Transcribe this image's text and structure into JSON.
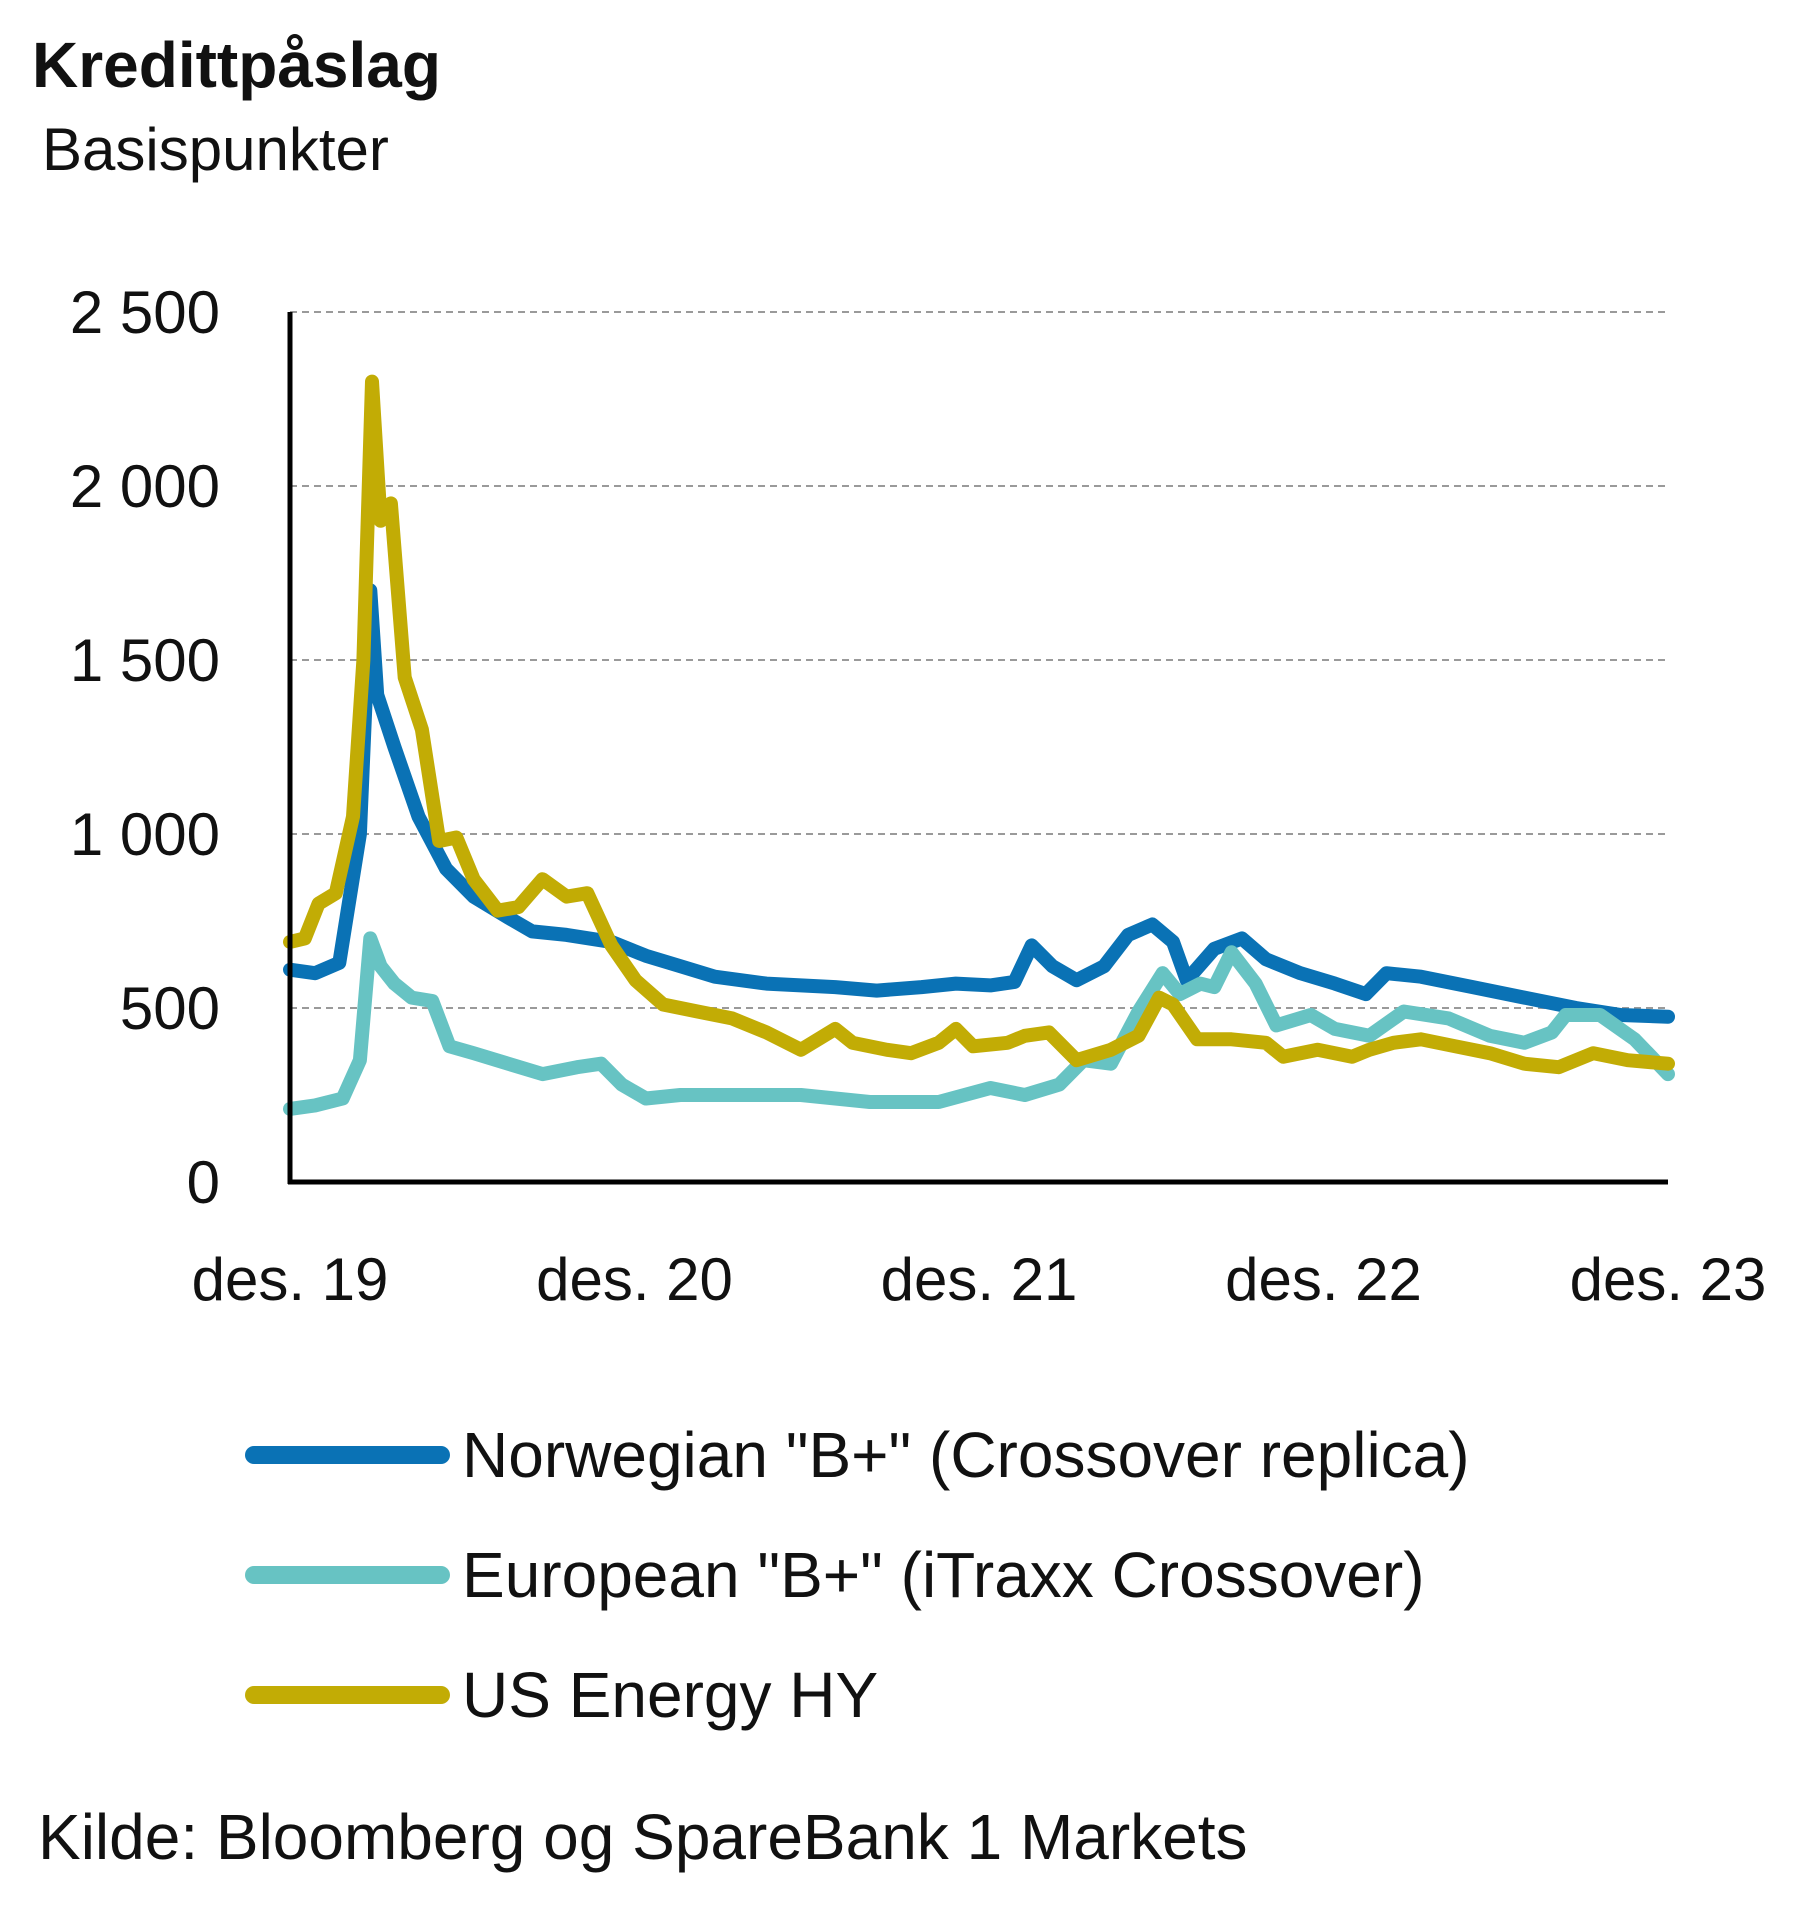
{
  "title": "Kredittpåslag",
  "subtitle": "Basispunkter",
  "source": "Kilde: Bloomberg og SpareBank 1 Markets",
  "chart_data": {
    "type": "line",
    "ylim": [
      0,
      2500
    ],
    "yticks": [
      0,
      500,
      1000,
      1500,
      2000,
      2500
    ],
    "ytick_labels": [
      "0",
      "500",
      "1 000",
      "1 500",
      "2 000",
      "2 500"
    ],
    "xlim": [
      2019.917,
      2023.917
    ],
    "xticks": [
      2019.917,
      2020.917,
      2021.917,
      2022.917,
      2023.917
    ],
    "xtick_labels": [
      "des. 19",
      "des. 20",
      "des. 21",
      "des. 22",
      "des. 23"
    ],
    "grid": true,
    "legend_position": "bottom",
    "series": [
      {
        "name": "Norwegian \"B+\" (Crossover replica)",
        "color": "#0a72b5",
        "points": [
          [
            2019.917,
            610
          ],
          [
            2019.99,
            600
          ],
          [
            2020.06,
            630
          ],
          [
            2020.12,
            1000
          ],
          [
            2020.15,
            1700
          ],
          [
            2020.17,
            1400
          ],
          [
            2020.22,
            1250
          ],
          [
            2020.29,
            1050
          ],
          [
            2020.37,
            900
          ],
          [
            2020.45,
            820
          ],
          [
            2020.55,
            760
          ],
          [
            2020.62,
            720
          ],
          [
            2020.72,
            710
          ],
          [
            2020.85,
            690
          ],
          [
            2020.95,
            650
          ],
          [
            2021.05,
            620
          ],
          [
            2021.15,
            590
          ],
          [
            2021.3,
            570
          ],
          [
            2021.5,
            560
          ],
          [
            2021.62,
            550
          ],
          [
            2021.75,
            560
          ],
          [
            2021.85,
            570
          ],
          [
            2021.95,
            565
          ],
          [
            2022.02,
            575
          ],
          [
            2022.07,
            680
          ],
          [
            2022.13,
            620
          ],
          [
            2022.2,
            580
          ],
          [
            2022.28,
            620
          ],
          [
            2022.35,
            710
          ],
          [
            2022.42,
            740
          ],
          [
            2022.48,
            690
          ],
          [
            2022.52,
            580
          ],
          [
            2022.6,
            670
          ],
          [
            2022.68,
            700
          ],
          [
            2022.75,
            640
          ],
          [
            2022.85,
            600
          ],
          [
            2022.95,
            570
          ],
          [
            2023.04,
            540
          ],
          [
            2023.1,
            600
          ],
          [
            2023.2,
            590
          ],
          [
            2023.35,
            560
          ],
          [
            2023.5,
            530
          ],
          [
            2023.65,
            500
          ],
          [
            2023.78,
            480
          ],
          [
            2023.917,
            475
          ]
        ]
      },
      {
        "name": "European \"B+\" (iTraxx Crossover)",
        "color": "#67c3c3",
        "points": [
          [
            2019.917,
            210
          ],
          [
            2019.99,
            220
          ],
          [
            2020.07,
            240
          ],
          [
            2020.12,
            350
          ],
          [
            2020.15,
            700
          ],
          [
            2020.18,
            620
          ],
          [
            2020.22,
            570
          ],
          [
            2020.27,
            530
          ],
          [
            2020.33,
            520
          ],
          [
            2020.38,
            390
          ],
          [
            2020.45,
            370
          ],
          [
            2020.55,
            340
          ],
          [
            2020.65,
            310
          ],
          [
            2020.75,
            330
          ],
          [
            2020.82,
            340
          ],
          [
            2020.88,
            280
          ],
          [
            2020.95,
            240
          ],
          [
            2021.05,
            250
          ],
          [
            2021.2,
            250
          ],
          [
            2021.4,
            250
          ],
          [
            2021.6,
            230
          ],
          [
            2021.8,
            230
          ],
          [
            2021.95,
            270
          ],
          [
            2022.05,
            250
          ],
          [
            2022.15,
            280
          ],
          [
            2022.22,
            350
          ],
          [
            2022.3,
            340
          ],
          [
            2022.38,
            490
          ],
          [
            2022.45,
            600
          ],
          [
            2022.5,
            540
          ],
          [
            2022.56,
            570
          ],
          [
            2022.6,
            560
          ],
          [
            2022.65,
            660
          ],
          [
            2022.72,
            570
          ],
          [
            2022.78,
            450
          ],
          [
            2022.88,
            480
          ],
          [
            2022.95,
            440
          ],
          [
            2023.05,
            420
          ],
          [
            2023.15,
            490
          ],
          [
            2023.28,
            470
          ],
          [
            2023.4,
            420
          ],
          [
            2023.5,
            400
          ],
          [
            2023.58,
            430
          ],
          [
            2023.62,
            480
          ],
          [
            2023.72,
            480
          ],
          [
            2023.82,
            410
          ],
          [
            2023.917,
            310
          ]
        ]
      },
      {
        "name": "US Energy HY",
        "color": "#c2ac05",
        "points": [
          [
            2019.917,
            690
          ],
          [
            2019.96,
            700
          ],
          [
            2020.0,
            800
          ],
          [
            2020.05,
            830
          ],
          [
            2020.1,
            1050
          ],
          [
            2020.13,
            1500
          ],
          [
            2020.155,
            2300
          ],
          [
            2020.18,
            1900
          ],
          [
            2020.21,
            1950
          ],
          [
            2020.25,
            1450
          ],
          [
            2020.3,
            1300
          ],
          [
            2020.35,
            980
          ],
          [
            2020.4,
            990
          ],
          [
            2020.45,
            870
          ],
          [
            2020.52,
            780
          ],
          [
            2020.58,
            790
          ],
          [
            2020.65,
            870
          ],
          [
            2020.72,
            820
          ],
          [
            2020.78,
            830
          ],
          [
            2020.85,
            680
          ],
          [
            2020.92,
            580
          ],
          [
            2021.0,
            510
          ],
          [
            2021.1,
            490
          ],
          [
            2021.2,
            470
          ],
          [
            2021.3,
            430
          ],
          [
            2021.4,
            380
          ],
          [
            2021.5,
            440
          ],
          [
            2021.55,
            400
          ],
          [
            2021.65,
            380
          ],
          [
            2021.72,
            370
          ],
          [
            2021.8,
            400
          ],
          [
            2021.85,
            440
          ],
          [
            2021.9,
            390
          ],
          [
            2022.0,
            400
          ],
          [
            2022.05,
            420
          ],
          [
            2022.12,
            430
          ],
          [
            2022.2,
            350
          ],
          [
            2022.3,
            380
          ],
          [
            2022.38,
            420
          ],
          [
            2022.44,
            530
          ],
          [
            2022.48,
            510
          ],
          [
            2022.55,
            410
          ],
          [
            2022.65,
            410
          ],
          [
            2022.75,
            400
          ],
          [
            2022.8,
            360
          ],
          [
            2022.9,
            380
          ],
          [
            2023.0,
            360
          ],
          [
            2023.05,
            380
          ],
          [
            2023.12,
            400
          ],
          [
            2023.2,
            410
          ],
          [
            2023.3,
            390
          ],
          [
            2023.4,
            370
          ],
          [
            2023.5,
            340
          ],
          [
            2023.6,
            330
          ],
          [
            2023.7,
            370
          ],
          [
            2023.8,
            350
          ],
          [
            2023.917,
            340
          ]
        ]
      }
    ]
  }
}
